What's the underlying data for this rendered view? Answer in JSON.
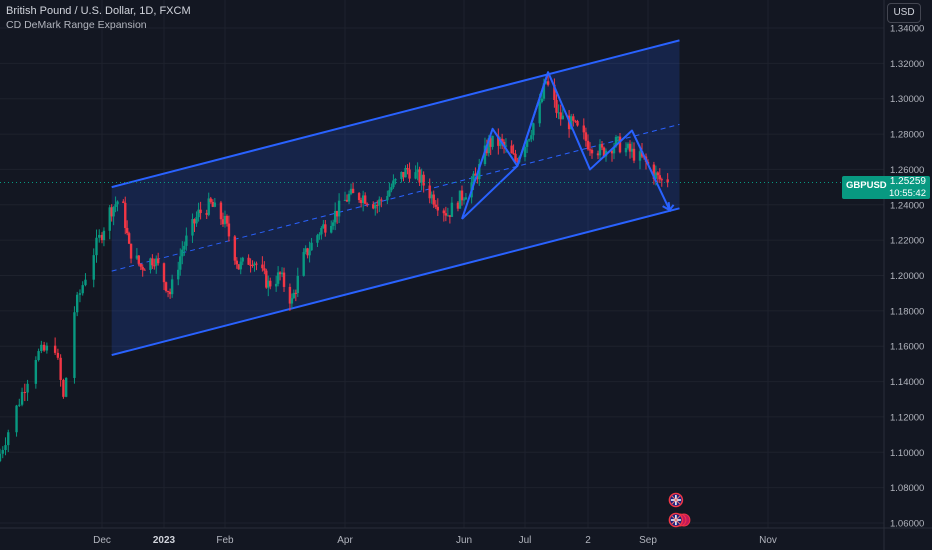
{
  "header": {
    "title": "British Pound / U.S. Dollar, 1D, FXCM",
    "indicator": "CD DeMark Range Expansion",
    "currency_button": "USD"
  },
  "price_tag": {
    "symbol": "GBPUSD",
    "price": "1.25259",
    "countdown": "10:55:42",
    "color": "#089981"
  },
  "colors": {
    "up": "#089981",
    "down": "#f23645",
    "channel": "#2962ff",
    "channel_fill": "rgba(41,98,255,0.18)",
    "pattern": "#2962ff"
  },
  "chart_data": {
    "type": "candlestick",
    "title": "British Pound / U.S. Dollar, 1D, FXCM",
    "y_axis": {
      "ticks": [
        "1.34000",
        "1.32000",
        "1.30000",
        "1.28000",
        "1.26000",
        "1.24000",
        "1.22000",
        "1.20000",
        "1.18000",
        "1.16000",
        "1.14000",
        "1.12000",
        "1.10000",
        "1.08000",
        "1.06000"
      ],
      "range": [
        1.055,
        1.345
      ]
    },
    "x_axis": {
      "labels": [
        {
          "text": "Dec",
          "bold": false
        },
        {
          "text": "2023",
          "bold": true
        },
        {
          "text": "Feb",
          "bold": false
        },
        {
          "text": "Apr",
          "bold": false
        },
        {
          "text": "Jun",
          "bold": false
        },
        {
          "text": "Jul",
          "bold": false
        },
        {
          "text": "2",
          "bold": false
        },
        {
          "text": "Sep",
          "bold": false
        },
        {
          "text": "Nov",
          "bold": false
        }
      ]
    },
    "price_path": [
      [
        "2022-10-25",
        1.095
      ],
      [
        "2022-11-01",
        1.125
      ],
      [
        "2022-11-08",
        1.155
      ],
      [
        "2022-11-15",
        1.16
      ],
      [
        "2022-11-18",
        1.13
      ],
      [
        "2022-11-22",
        1.18
      ],
      [
        "2022-11-28",
        1.21
      ],
      [
        "2022-12-05",
        1.235
      ],
      [
        "2022-12-12",
        1.245
      ],
      [
        "2022-12-16",
        1.215
      ],
      [
        "2022-12-22",
        1.205
      ],
      [
        "2022-12-29",
        1.21
      ],
      [
        "2023-01-06",
        1.19
      ],
      [
        "2023-01-12",
        1.215
      ],
      [
        "2023-01-20",
        1.235
      ],
      [
        "2023-01-26",
        1.24
      ],
      [
        "2023-02-02",
        1.23
      ],
      [
        "2023-02-09",
        1.205
      ],
      [
        "2023-02-16",
        1.21
      ],
      [
        "2023-02-24",
        1.195
      ],
      [
        "2023-03-02",
        1.2
      ],
      [
        "2023-03-08",
        1.185
      ],
      [
        "2023-03-14",
        1.21
      ],
      [
        "2023-03-22",
        1.225
      ],
      [
        "2023-03-30",
        1.235
      ],
      [
        "2023-04-06",
        1.245
      ],
      [
        "2023-04-13",
        1.245
      ],
      [
        "2023-04-20",
        1.24
      ],
      [
        "2023-04-27",
        1.25
      ],
      [
        "2023-05-05",
        1.26
      ],
      [
        "2023-05-11",
        1.255
      ],
      [
        "2023-05-17",
        1.245
      ],
      [
        "2023-05-25",
        1.235
      ],
      [
        "2023-06-01",
        1.245
      ],
      [
        "2023-06-08",
        1.255
      ],
      [
        "2023-06-15",
        1.275
      ],
      [
        "2023-06-21",
        1.275
      ],
      [
        "2023-06-29",
        1.265
      ],
      [
        "2023-07-06",
        1.28
      ],
      [
        "2023-07-11",
        1.295
      ],
      [
        "2023-07-14",
        1.31
      ],
      [
        "2023-07-20",
        1.29
      ],
      [
        "2023-07-27",
        1.285
      ],
      [
        "2023-08-03",
        1.275
      ],
      [
        "2023-08-10",
        1.27
      ],
      [
        "2023-08-17",
        1.275
      ],
      [
        "2023-08-24",
        1.27
      ],
      [
        "2023-08-31",
        1.265
      ],
      [
        "2023-09-07",
        1.255
      ],
      [
        "2023-09-11",
        1.25259
      ]
    ],
    "last_price": 1.25259,
    "channel": {
      "start_date": "2022-12-06",
      "end_date": "2023-09-17",
      "upper": [
        1.25,
        1.333
      ],
      "lower": [
        1.155,
        1.238
      ],
      "mid": [
        1.2025,
        1.2855
      ]
    },
    "harmonic_pattern": [
      [
        "2023-05-31",
        1.232
      ],
      [
        "2023-06-29",
        1.262
      ],
      [
        "2023-07-14",
        1.315
      ],
      [
        "2023-08-03",
        1.26
      ],
      [
        "2023-08-24",
        1.282
      ],
      [
        "2023-09-12",
        1.237
      ],
      [
        "2023-09-14",
        1.24
      ]
    ],
    "inner_zigzag": [
      [
        "2023-05-31",
        1.232
      ],
      [
        "2023-06-16",
        1.283
      ],
      [
        "2023-06-29",
        1.262
      ],
      [
        "2023-07-14",
        1.315
      ]
    ],
    "event_markers": [
      "2023-09-04",
      "2023-09-04"
    ]
  }
}
